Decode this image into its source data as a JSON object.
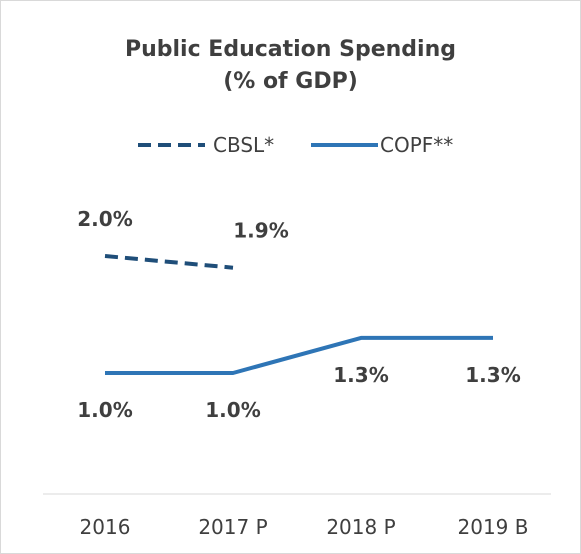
{
  "chart_data": {
    "type": "line",
    "title": "Public Education Spending",
    "subtitle": "(% of GDP)",
    "categories": [
      "2016",
      "2017 P",
      "2018 P",
      "2019 B"
    ],
    "series": [
      {
        "name": "CBSL*",
        "values": [
          2.0,
          1.9,
          null,
          null
        ],
        "labels": [
          "2.0%",
          "1.9%",
          "",
          ""
        ],
        "style": "dashed",
        "color": "#1f4e79"
      },
      {
        "name": "COPF**",
        "values": [
          1.0,
          1.0,
          1.3,
          1.3
        ],
        "labels": [
          "1.0%",
          "1.0%",
          "1.3%",
          "1.3%"
        ],
        "style": "solid",
        "color": "#2e75b6"
      }
    ],
    "legend": "top",
    "grid": false,
    "axis_color": "#d9d9d9"
  }
}
